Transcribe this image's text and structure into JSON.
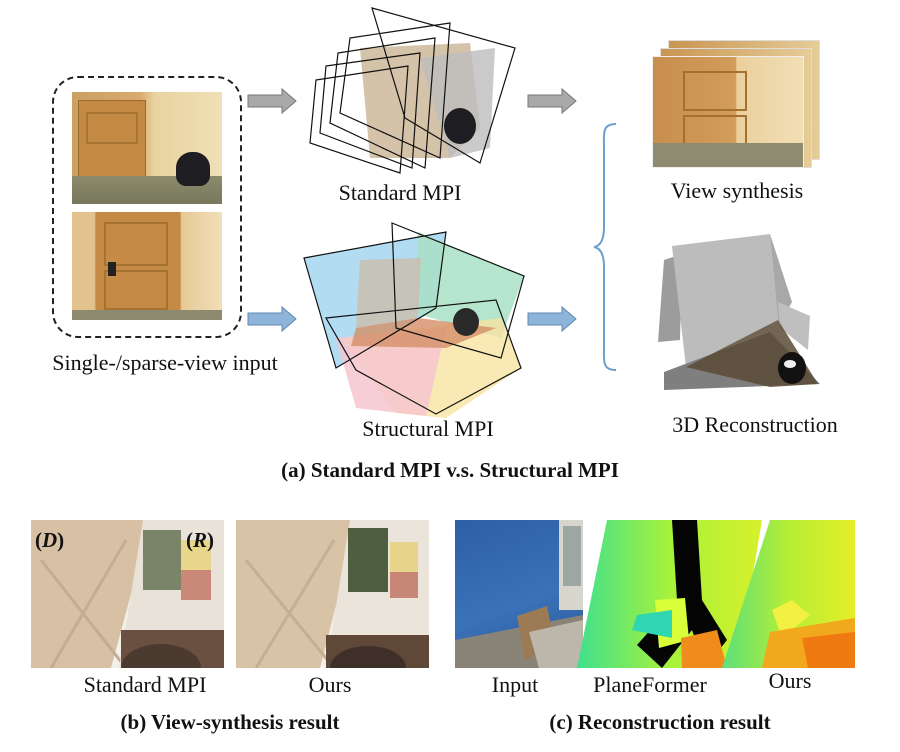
{
  "part_a": {
    "input_label": "Single-/sparse-view input",
    "standard_mpi_label": "Standard MPI",
    "structural_mpi_label": "Structural MPI",
    "view_synthesis_label": "View synthesis",
    "reconstruction_label": "3D Reconstruction",
    "caption": "(a) Standard MPI v.s. Structural MPI"
  },
  "part_b": {
    "d_label": "D",
    "r_label": "R",
    "standard_label": "Standard MPI",
    "ours_label": "Ours",
    "caption": "(b) View-synthesis result"
  },
  "part_c": {
    "input_label": "Input",
    "planeformer_label": "PlaneFormer",
    "ours_label": "Ours",
    "caption": "(c) Reconstruction result"
  },
  "colors": {
    "gray_arrow": "#a9a9a9",
    "blue_arrow": "#8fb4d9",
    "brace": "#6a9fd0",
    "plane_blue": "#9fd3ef",
    "plane_green": "#a8e0c4",
    "plane_pink": "#f7c6cf",
    "plane_yellow": "#f8e3a2"
  }
}
